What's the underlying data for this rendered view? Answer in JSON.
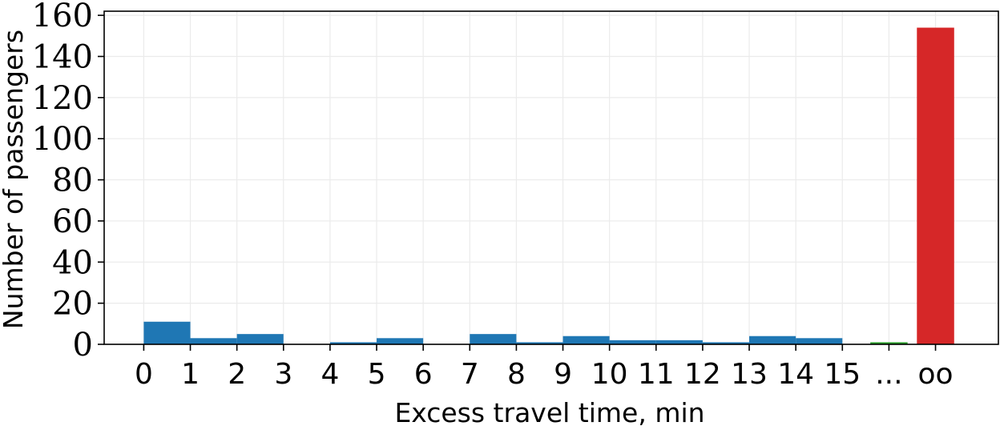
{
  "chart_data": {
    "type": "bar",
    "xlabel": "Excess travel time, min",
    "ylabel": "Number of passengers",
    "ylim": [
      0,
      162
    ],
    "yticks": [
      0,
      20,
      40,
      60,
      80,
      100,
      120,
      140,
      160
    ],
    "grid": true,
    "xticks": [
      {
        "label": "0",
        "x": 0
      },
      {
        "label": "1",
        "x": 1
      },
      {
        "label": "2",
        "x": 2
      },
      {
        "label": "3",
        "x": 3
      },
      {
        "label": "4",
        "x": 4
      },
      {
        "label": "5",
        "x": 5
      },
      {
        "label": "6",
        "x": 6
      },
      {
        "label": "7",
        "x": 7
      },
      {
        "label": "8",
        "x": 8
      },
      {
        "label": "9",
        "x": 9
      },
      {
        "label": "10",
        "x": 10
      },
      {
        "label": "11",
        "x": 11
      },
      {
        "label": "12",
        "x": 12
      },
      {
        "label": "13",
        "x": 13
      },
      {
        "label": "14",
        "x": 14
      },
      {
        "label": "15",
        "x": 15
      },
      {
        "label": "...",
        "x": 16
      },
      {
        "label": "oo",
        "x": 17
      }
    ],
    "bins": [
      {
        "from": 0,
        "to": 1,
        "value": 11,
        "color": "#1f77b4"
      },
      {
        "from": 1,
        "to": 2,
        "value": 3,
        "color": "#1f77b4"
      },
      {
        "from": 2,
        "to": 3,
        "value": 5,
        "color": "#1f77b4"
      },
      {
        "from": 3,
        "to": 4,
        "value": 0,
        "color": "#1f77b4"
      },
      {
        "from": 4,
        "to": 5,
        "value": 1,
        "color": "#1f77b4"
      },
      {
        "from": 5,
        "to": 6,
        "value": 3,
        "color": "#1f77b4"
      },
      {
        "from": 6,
        "to": 7,
        "value": 0,
        "color": "#1f77b4"
      },
      {
        "from": 7,
        "to": 8,
        "value": 5,
        "color": "#1f77b4"
      },
      {
        "from": 8,
        "to": 9,
        "value": 1,
        "color": "#1f77b4"
      },
      {
        "from": 9,
        "to": 10,
        "value": 4,
        "color": "#1f77b4"
      },
      {
        "from": 10,
        "to": 11,
        "value": 2,
        "color": "#1f77b4"
      },
      {
        "from": 11,
        "to": 12,
        "value": 2,
        "color": "#1f77b4"
      },
      {
        "from": 12,
        "to": 13,
        "value": 1,
        "color": "#1f77b4"
      },
      {
        "from": 13,
        "to": 14,
        "value": 4,
        "color": "#1f77b4"
      },
      {
        "from": 14,
        "to": 15,
        "value": 3,
        "color": "#1f77b4"
      },
      {
        "from": 15.6,
        "to": 16.4,
        "value": 1,
        "color": "#2ca02c"
      },
      {
        "from": 16.6,
        "to": 17.4,
        "value": 154,
        "color": "#d62728"
      }
    ],
    "xrange": [
      -0.85,
      18.35
    ]
  }
}
